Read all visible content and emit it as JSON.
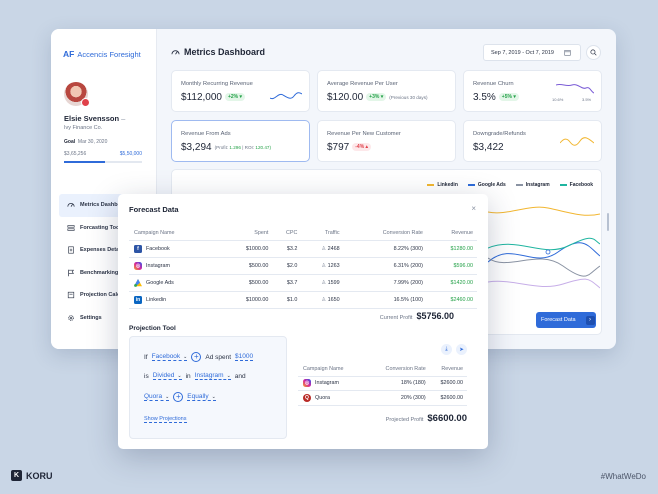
{
  "brand": {
    "logo": "AF",
    "name": "Accencis Foresight"
  },
  "user": {
    "name": "Elsie Svensson",
    "menu_glyph": "–",
    "company": "Ivy Finance Co.",
    "goal_label": "Goal",
    "goal_date": "Mar 30, 2020",
    "current": "$3,65,256",
    "target": "$5,50,000",
    "progress": 0.52
  },
  "nav": [
    {
      "label": "Metrics Dashboard",
      "icon": "gauge-icon",
      "active": true
    },
    {
      "label": "Forcasting Tools",
      "icon": "layers-icon",
      "active": false
    },
    {
      "label": "Expenses Details",
      "icon": "receipt-icon",
      "active": false
    },
    {
      "label": "Benchmarking",
      "icon": "flag-icon",
      "active": false
    },
    {
      "label": "Projection Calculator",
      "icon": "calculator-icon",
      "active": false
    },
    {
      "label": "Settings",
      "icon": "gear-icon",
      "active": false
    }
  ],
  "header": {
    "title": "Metrics Dashboard",
    "date_range": "Sep 7, 2019 - Oct 7, 2019"
  },
  "cards": {
    "mrr": {
      "label": "Monthly Recurring Revenue",
      "value": "$112,000",
      "badge": "+2%"
    },
    "arpu": {
      "label": "Average Revenue Per User",
      "value": "$120.00",
      "badge": "+3%",
      "sub": "(Previous 30 days)"
    },
    "churn": {
      "label": "Revenue Churn",
      "value": "3.5%",
      "badge": "+5%",
      "mini_a": "10.6%",
      "mini_b": "3.5%"
    },
    "ads": {
      "label": "Revenue From Ads",
      "value": "$3,294",
      "sub_profit_label": "(Profit:",
      "sub_profit": "1.296",
      "sub_roi_label": "| ROI:",
      "sub_roi": "120.47)"
    },
    "rpnc": {
      "label": "Revenue Per New Customer",
      "value": "$797",
      "badge": "-4%"
    },
    "refunds": {
      "label": "Downgrade/Refunds",
      "value": "$3,422"
    }
  },
  "legend": [
    {
      "name": "Linkedin",
      "color": "#f2b630"
    },
    {
      "name": "Google Ads",
      "color": "#2f6bd9"
    },
    {
      "name": "Instagram",
      "color": "#8a93a3"
    },
    {
      "name": "Facebook",
      "color": "#1fb5a0"
    }
  ],
  "forecast_button": {
    "label": "Forecast Data",
    "arrow": "›"
  },
  "modal": {
    "title": "Forecast Data",
    "close": "×",
    "columns": [
      "Campaign Name",
      "Spent",
      "CPC",
      "Traffic",
      "Conversion Rate",
      "Revenue"
    ],
    "rows": [
      {
        "name": "Facebook",
        "icon": "facebook-icon",
        "spent": "$1000.00",
        "cpc": "$3.2",
        "traffic": "2468",
        "conv": "8.22% (300)",
        "revenue": "$1280.00"
      },
      {
        "name": "Instagram",
        "icon": "instagram-icon",
        "spent": "$500.00",
        "cpc": "$2.0",
        "traffic": "1263",
        "conv": "6.31% (200)",
        "revenue": "$596.00"
      },
      {
        "name": "Google Ads",
        "icon": "google-icon",
        "spent": "$500.00",
        "cpc": "$3.7",
        "traffic": "1599",
        "conv": "7.99% (200)",
        "revenue": "$1420.00"
      },
      {
        "name": "Linkedin",
        "icon": "linkedin-icon",
        "spent": "$1000.00",
        "cpc": "$1.0",
        "traffic": "1650",
        "conv": "16.5% (100)",
        "revenue": "$2460.00"
      }
    ],
    "current_profit_label": "Current Profit",
    "current_profit": "$5756.00"
  },
  "projection": {
    "title": "Projection Tool",
    "if": "If",
    "platform": "Facebook",
    "ad_spent_label": "Ad spent",
    "ad_spent": "$1000",
    "is": "is",
    "op": "Divided",
    "in": "in",
    "target": "Instagram",
    "and": "and",
    "target2": "Quora",
    "op2": "Equally",
    "show": "Show Projections",
    "columns": [
      "Campaign Name",
      "Conversion Rate",
      "Revenue"
    ],
    "rows": [
      {
        "name": "Instagram",
        "icon": "instagram-icon",
        "conv": "18% (180)",
        "revenue": "$2600.00"
      },
      {
        "name": "Quora",
        "icon": "quora-icon",
        "conv": "20% (300)",
        "revenue": "$2600.00"
      }
    ],
    "profit_label": "Projected Profit",
    "profit": "$6600.00"
  },
  "footer": {
    "brand": "KORU",
    "hashtag": "#WhatWeDo"
  }
}
